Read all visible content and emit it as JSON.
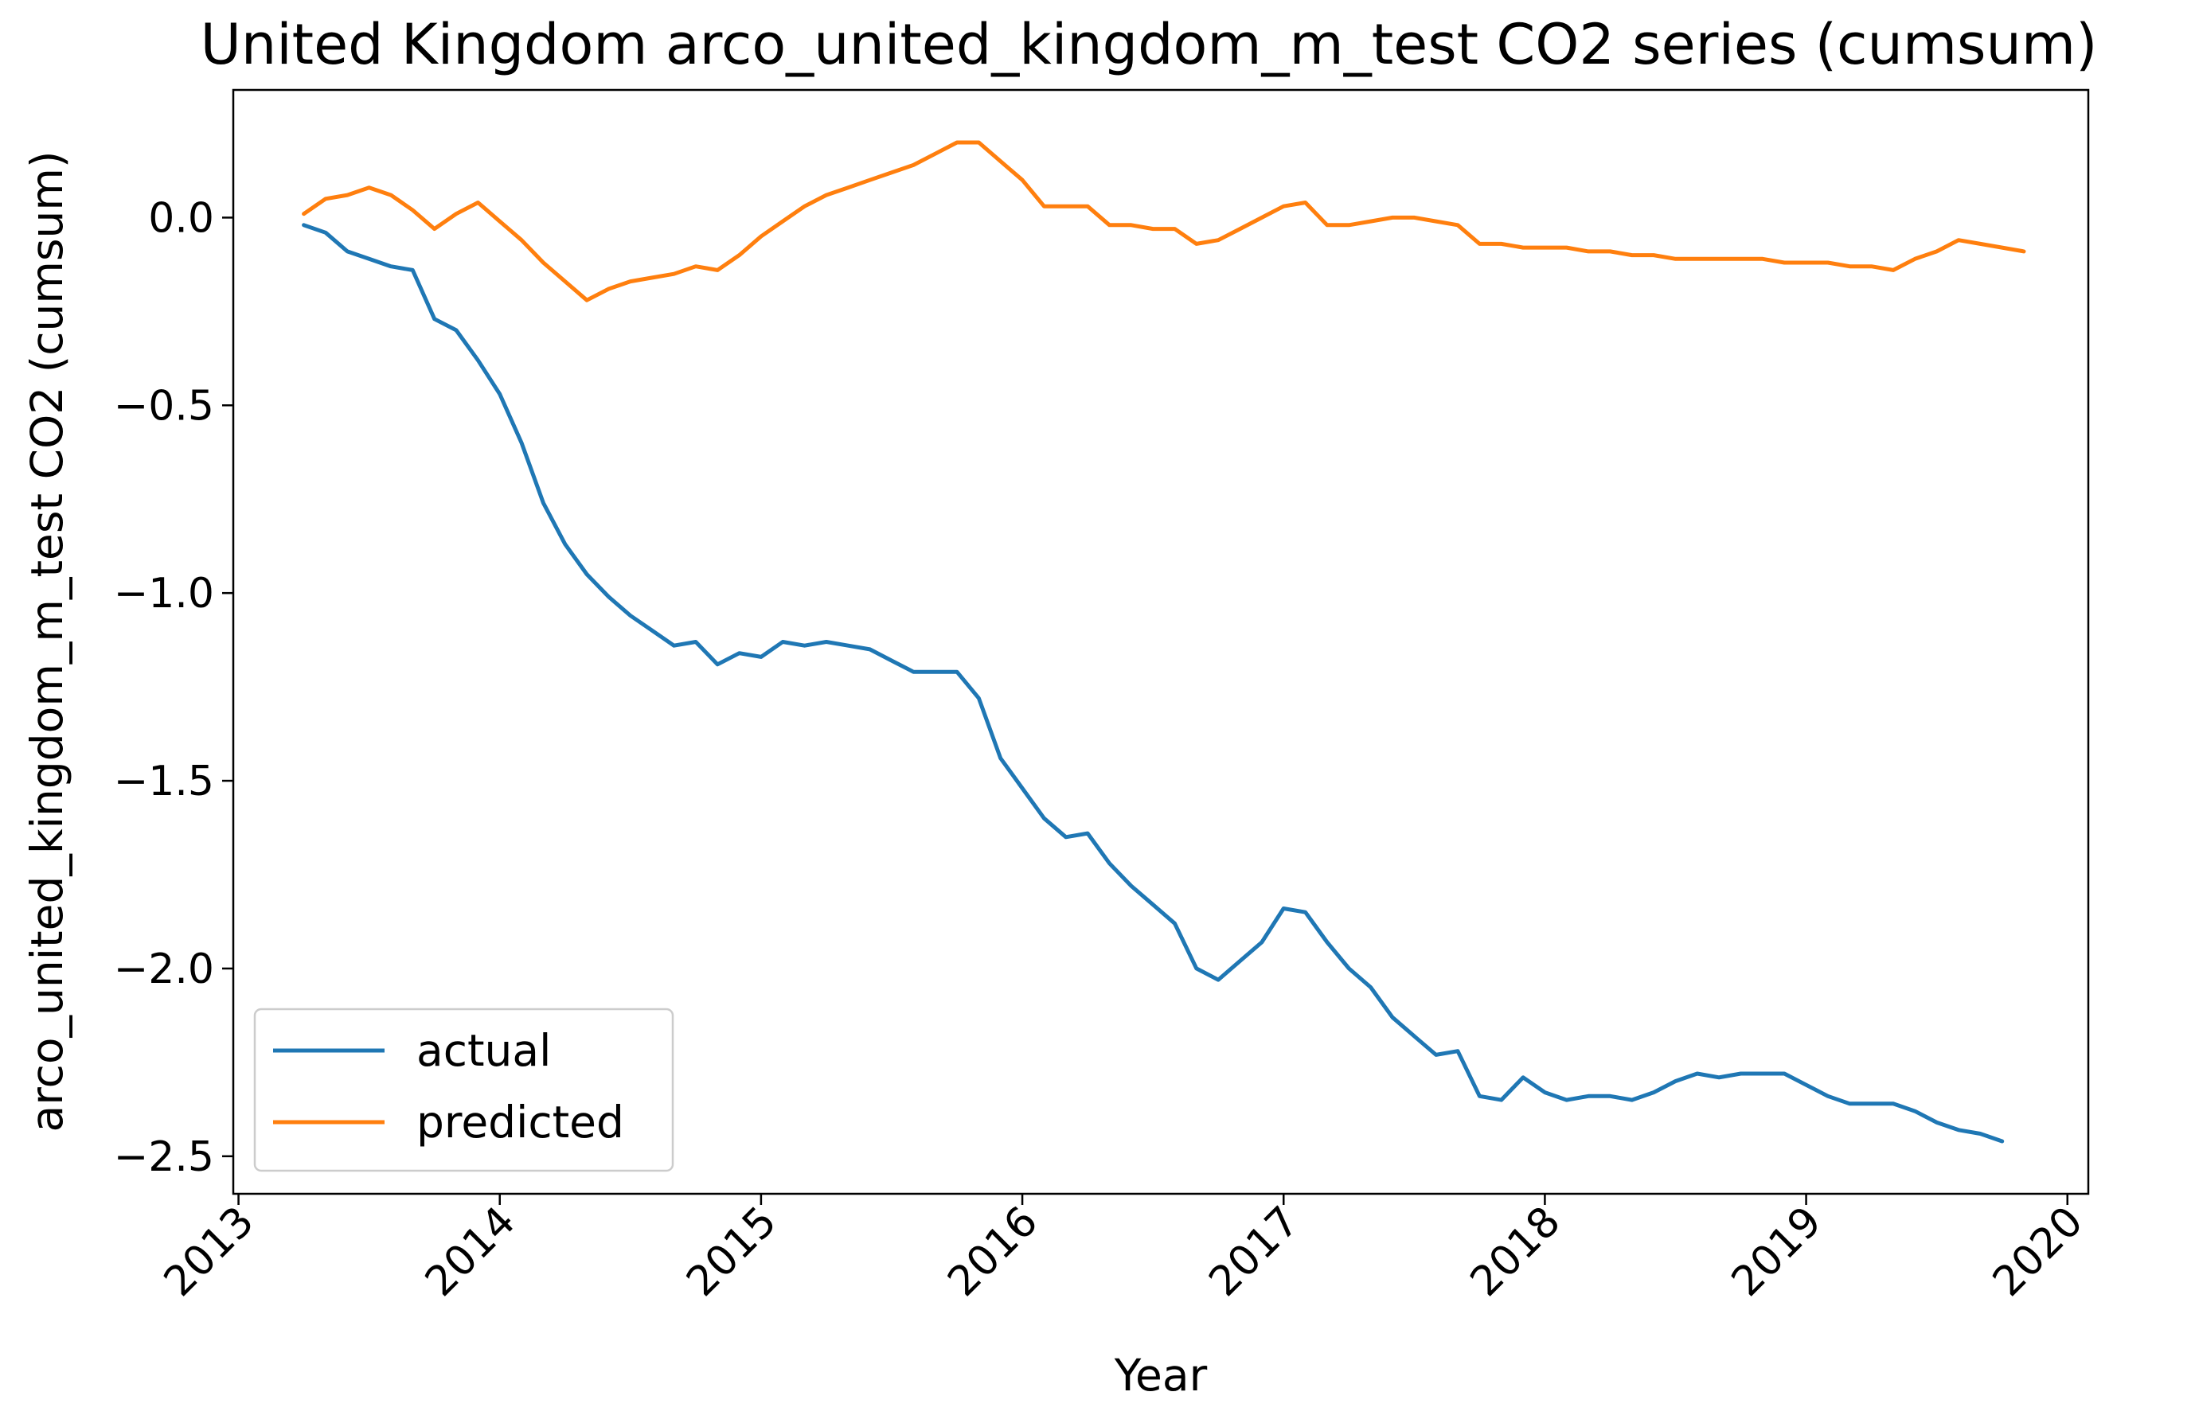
{
  "chart_data": {
    "type": "line",
    "title": "United Kingdom arco_united_kingdom_m_test CO2 series (cumsum)",
    "xlabel": "Year",
    "ylabel": "arco_united_kingdom_m_test CO2 (cumsum)",
    "xlim": [
      2012.98,
      2020.08
    ],
    "ylim": [
      -2.6,
      0.34
    ],
    "xticks": [
      2013,
      2014,
      2015,
      2016,
      2017,
      2018,
      2019,
      2020
    ],
    "xtick_labels": [
      "2013",
      "2014",
      "2015",
      "2016",
      "2017",
      "2018",
      "2019",
      "2020"
    ],
    "yticks": [
      0.0,
      -0.5,
      -1.0,
      -1.5,
      -2.0,
      -2.5
    ],
    "ytick_labels": [
      "0.0",
      "−0.5",
      "−1.0",
      "−1.5",
      "−2.0",
      "−2.5"
    ],
    "grid": false,
    "legend_position": "lower-left",
    "x_start": 2013.25,
    "x_step": 0.083333,
    "series": [
      {
        "name": "actual",
        "color": "#1f77b4",
        "values": [
          -0.02,
          -0.04,
          -0.09,
          -0.11,
          -0.13,
          -0.14,
          -0.27,
          -0.3,
          -0.38,
          -0.47,
          -0.6,
          -0.76,
          -0.87,
          -0.95,
          -1.01,
          -1.06,
          -1.1,
          -1.14,
          -1.13,
          -1.19,
          -1.16,
          -1.17,
          -1.13,
          -1.14,
          -1.13,
          -1.14,
          -1.15,
          -1.18,
          -1.21,
          -1.21,
          -1.21,
          -1.28,
          -1.44,
          -1.52,
          -1.6,
          -1.65,
          -1.64,
          -1.72,
          -1.78,
          -1.83,
          -1.88,
          -2.0,
          -2.03,
          -1.98,
          -1.93,
          -1.84,
          -1.85,
          -1.93,
          -2.0,
          -2.05,
          -2.13,
          -2.18,
          -2.23,
          -2.22,
          -2.34,
          -2.35,
          -2.29,
          -2.33,
          -2.35,
          -2.34,
          -2.34,
          -2.35,
          -2.33,
          -2.3,
          -2.28,
          -2.29,
          -2.28,
          -2.28,
          -2.28,
          -2.31,
          -2.34,
          -2.36,
          -2.36,
          -2.36,
          -2.38,
          -2.41,
          -2.43,
          -2.44,
          -2.46
        ]
      },
      {
        "name": "predicted",
        "color": "#ff7f0e",
        "values": [
          0.01,
          0.05,
          0.06,
          0.08,
          0.06,
          0.02,
          -0.03,
          0.01,
          0.04,
          -0.01,
          -0.06,
          -0.12,
          -0.17,
          -0.22,
          -0.19,
          -0.17,
          -0.16,
          -0.15,
          -0.13,
          -0.14,
          -0.1,
          -0.05,
          -0.01,
          0.03,
          0.06,
          0.08,
          0.1,
          0.12,
          0.14,
          0.17,
          0.2,
          0.2,
          0.15,
          0.1,
          0.03,
          0.03,
          0.03,
          -0.02,
          -0.02,
          -0.03,
          -0.03,
          -0.07,
          -0.06,
          -0.03,
          0.0,
          0.03,
          0.04,
          -0.02,
          -0.02,
          -0.01,
          0.0,
          0.0,
          -0.01,
          -0.02,
          -0.07,
          -0.07,
          -0.08,
          -0.08,
          -0.08,
          -0.09,
          -0.09,
          -0.1,
          -0.1,
          -0.11,
          -0.11,
          -0.11,
          -0.11,
          -0.11,
          -0.12,
          -0.12,
          -0.12,
          -0.13,
          -0.13,
          -0.14,
          -0.11,
          -0.09,
          -0.06,
          -0.07,
          -0.08,
          -0.09
        ]
      }
    ]
  }
}
